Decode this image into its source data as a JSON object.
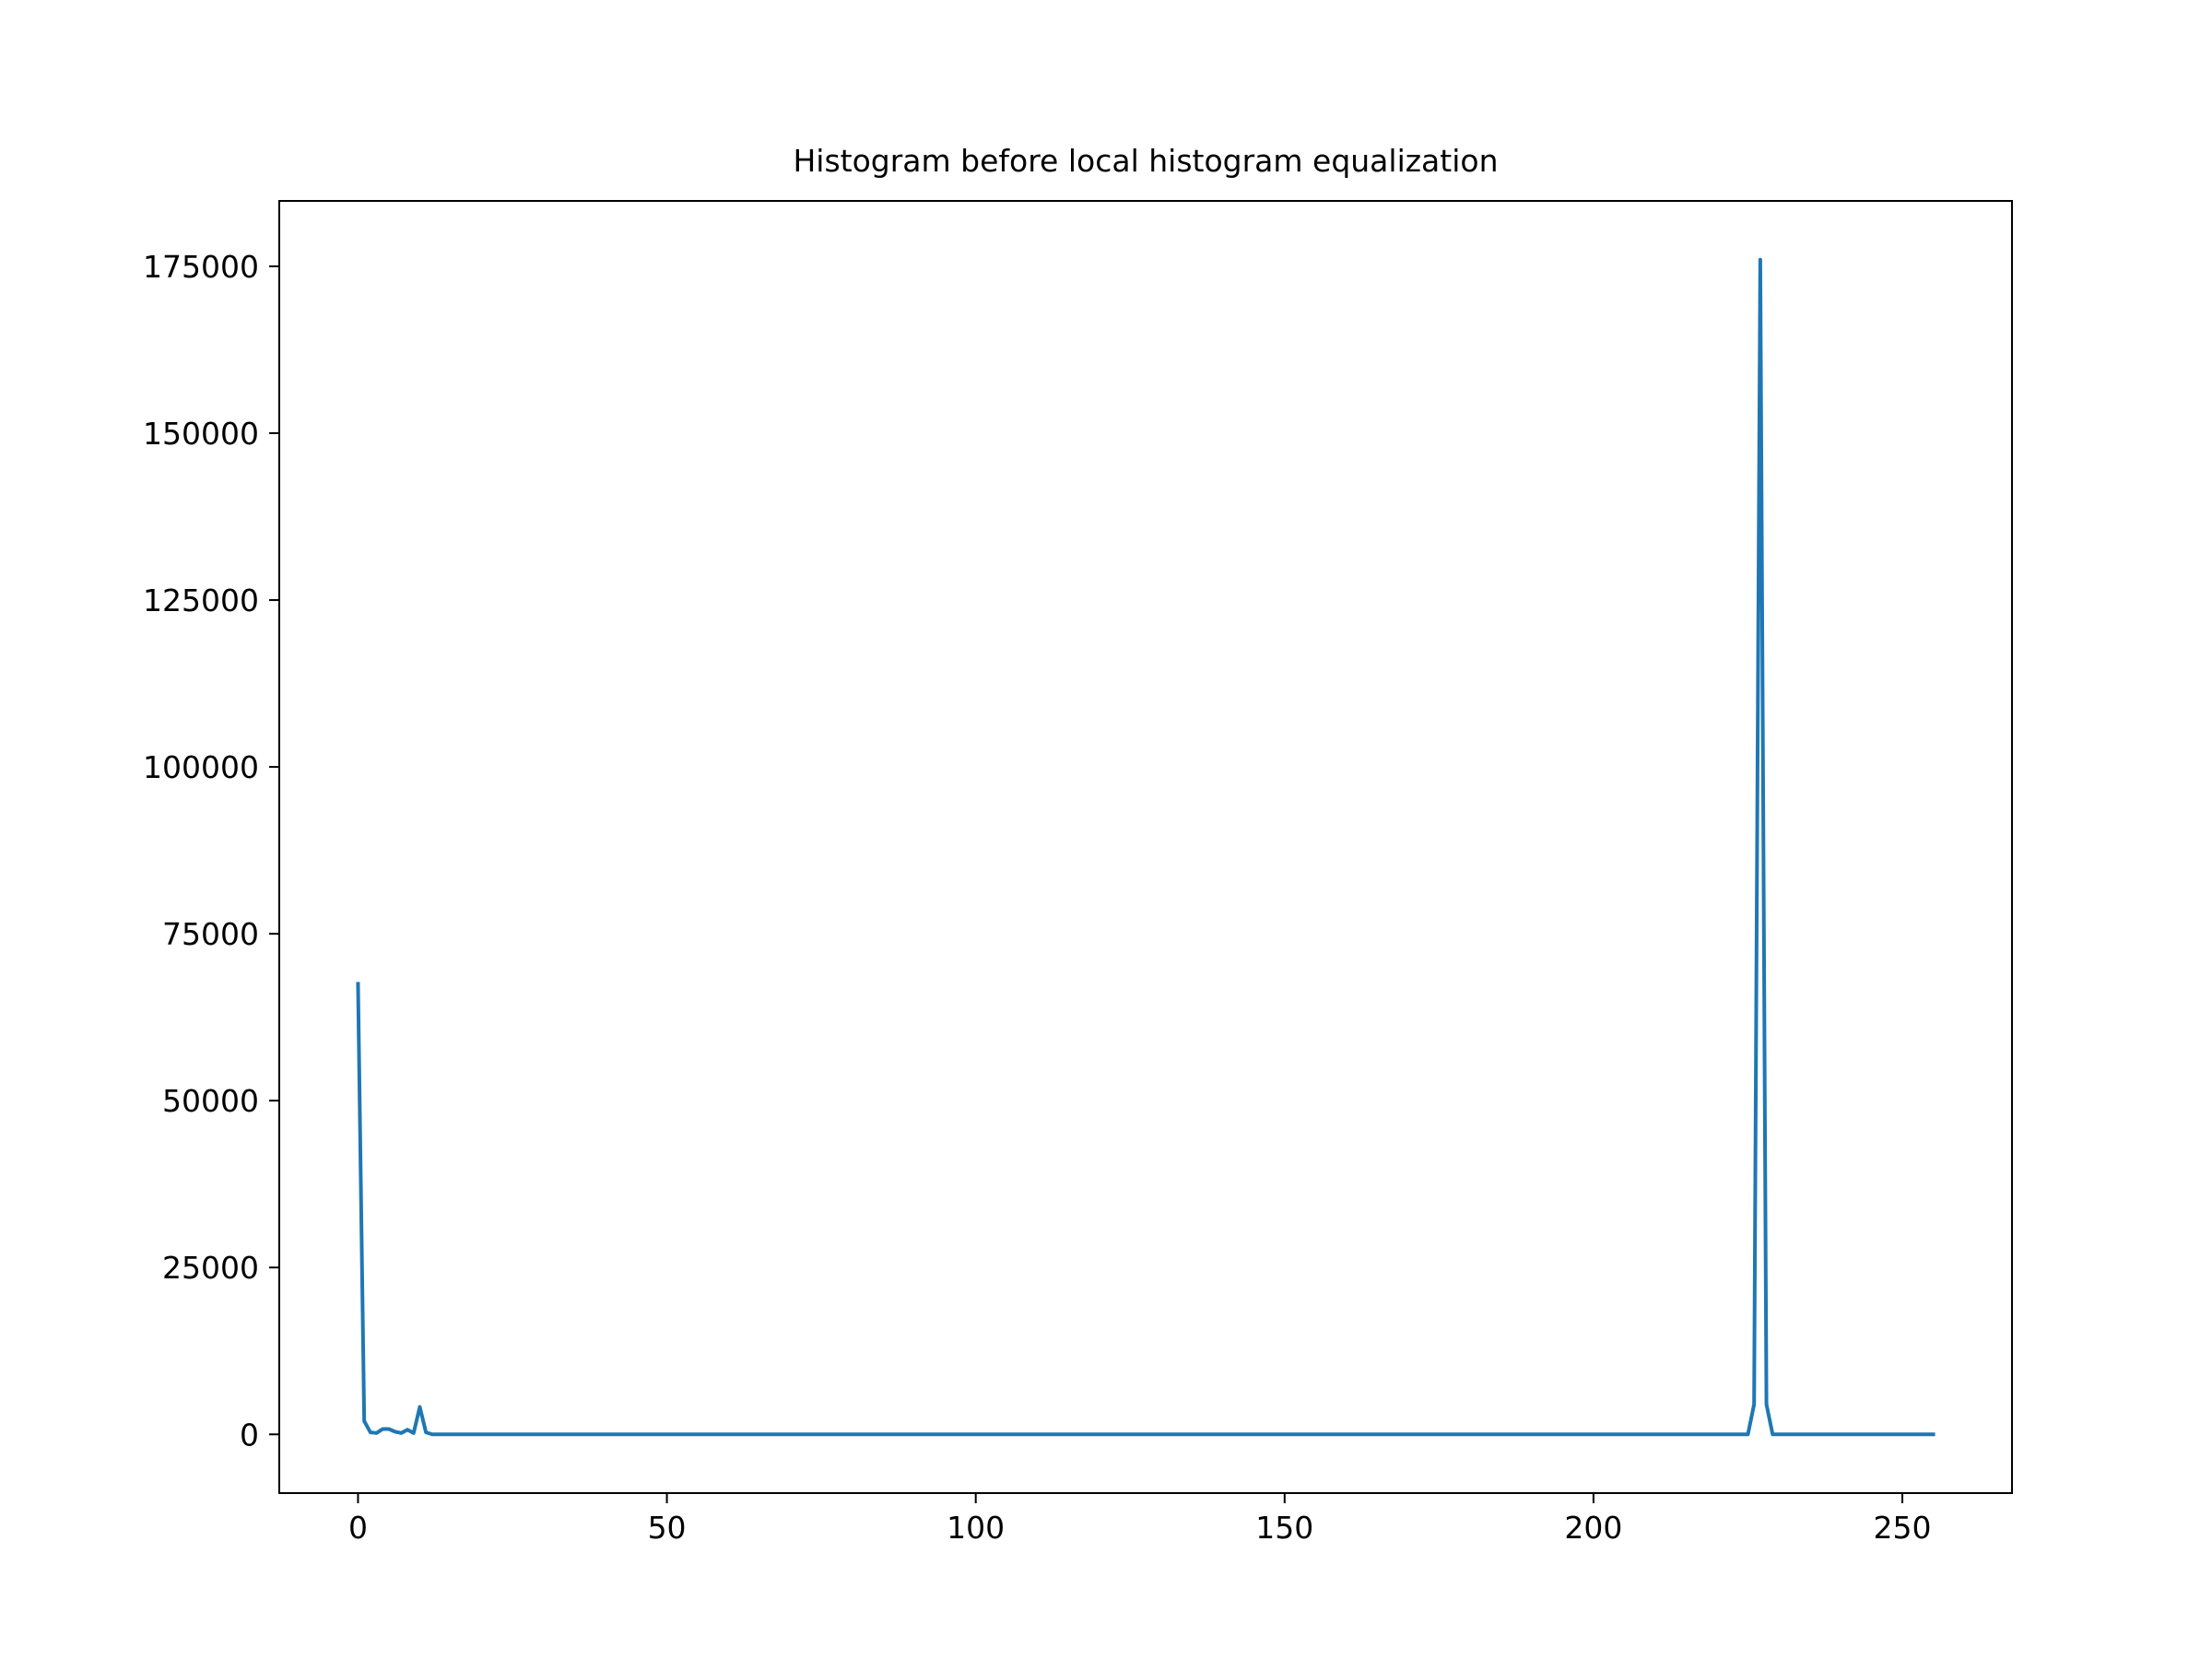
{
  "chart_data": {
    "type": "line",
    "title": "Histogram before local histogram equalization",
    "xlabel": "",
    "ylabel": "",
    "xlim": [
      -12.75,
      267.75
    ],
    "ylim": [
      -8800,
      184800
    ],
    "xticks": [
      0,
      50,
      100,
      150,
      200,
      250
    ],
    "yticks": [
      0,
      25000,
      50000,
      75000,
      100000,
      125000,
      150000,
      175000
    ],
    "xtick_labels": [
      "0",
      "50",
      "100",
      "150",
      "200",
      "250"
    ],
    "ytick_labels": [
      "0",
      "25000",
      "50000",
      "75000",
      "100000",
      "125000",
      "150000",
      "175000"
    ],
    "grid": false,
    "line_color": "#1f77b4",
    "series": [
      {
        "x": [
          0,
          1,
          2,
          3,
          4,
          5,
          6,
          7,
          8,
          9,
          10,
          11,
          12,
          225,
          226,
          227,
          228,
          229,
          230,
          255
        ],
        "values": [
          67500,
          2000,
          300,
          200,
          800,
          800,
          400,
          200,
          700,
          200,
          4100,
          300,
          0,
          0,
          4500,
          176000,
          4500,
          0,
          0,
          0
        ]
      }
    ]
  }
}
